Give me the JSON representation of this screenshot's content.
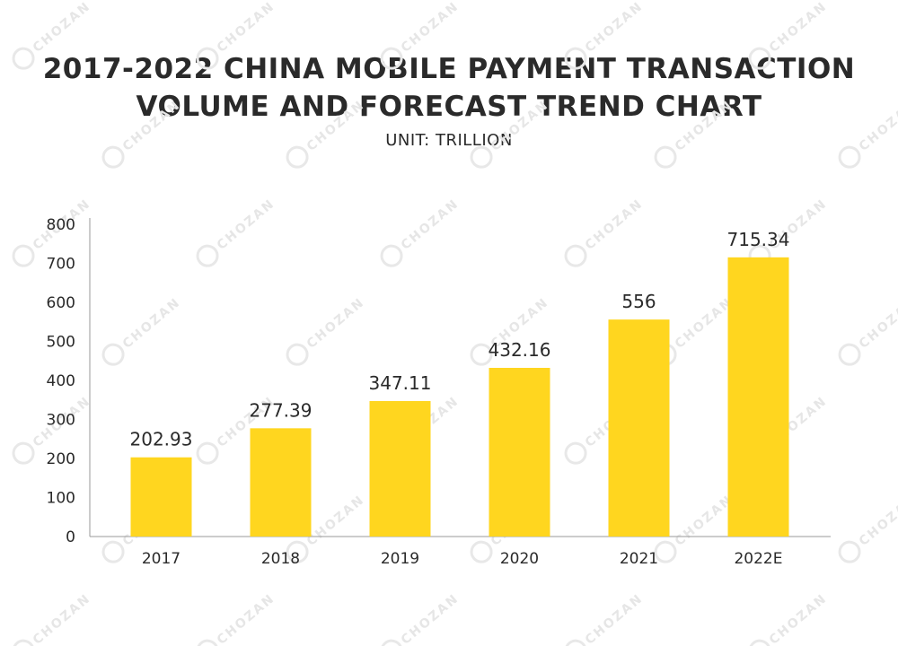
{
  "chart_data": {
    "type": "bar",
    "title_line1": "2017-2022 CHINA MOBILE PAYMENT TRANSACTION",
    "title_line2": "VOLUME AND FORECAST TREND CHART",
    "subtitle": "UNIT: TRILLION",
    "categories": [
      "2017",
      "2018",
      "2019",
      "2020",
      "2021",
      "2022E"
    ],
    "values": [
      202.93,
      277.39,
      347.11,
      432.16,
      556,
      715.34
    ],
    "value_labels": [
      "202.93",
      "277.39",
      "347.11",
      "432.16",
      "556",
      "715.34"
    ],
    "y_ticks": [
      0,
      100,
      200,
      300,
      400,
      500,
      600,
      700,
      800
    ],
    "ylim": [
      0,
      800
    ],
    "grid": false,
    "legend": "none",
    "bar_color": "#FFD61F",
    "axis_color": "#9a9a9a"
  },
  "watermark": "CHOZAN"
}
